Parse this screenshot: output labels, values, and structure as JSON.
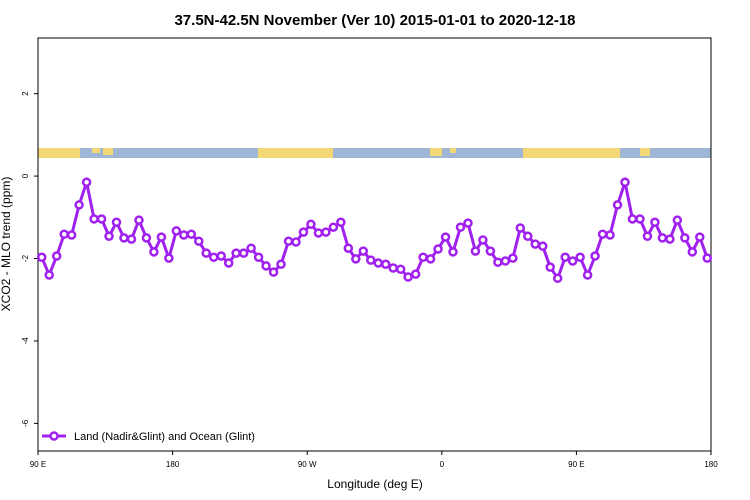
{
  "chart_data": {
    "type": "line",
    "title": "37.5N-42.5N November (Ver 10)   2015-01-01 to 2020-12-18",
    "x_label": "Longitude (deg E)",
    "y_label": "XCO2 - MLO trend (ppm)",
    "x": [
      92.5,
      97.5,
      102.5,
      107.5,
      112.5,
      117.5,
      122.5,
      127.5,
      132.5,
      137.5,
      142.5,
      147.5,
      152.5,
      157.5,
      162.5,
      167.5,
      172.5,
      177.5,
      182.5,
      187.5,
      192.5,
      197.5,
      202.5,
      207.5,
      212.5,
      217.5,
      222.5,
      227.5,
      232.5,
      237.5,
      242.5,
      247.5,
      252.5,
      257.5,
      262.5,
      267.5,
      272.5,
      277.5,
      282.5,
      287.5,
      292.5,
      297.5,
      302.5,
      307.5,
      312.5,
      317.5,
      322.5,
      327.5,
      332.5,
      337.5,
      342.5,
      347.5,
      352.5,
      357.5,
      362.5,
      367.5,
      372.5,
      377.5,
      382.5,
      387.5,
      392.5,
      397.5,
      402.5,
      407.5,
      412.5,
      417.5,
      422.5,
      427.5,
      432.5,
      437.5,
      442.5,
      447.5,
      452.5,
      457.5,
      462.5,
      467.5,
      472.5,
      477.5,
      482.5,
      487.5,
      492.5,
      497.5,
      502.5,
      507.5,
      512.5,
      517.5,
      522.5,
      527.5,
      532.5,
      537.5
    ],
    "series": [
      {
        "name": "Land (Nadir&Glint) and Ocean (Glint)",
        "color": "#a020f0",
        "values": [
          -1.97,
          -2.4,
          -1.94,
          -1.41,
          -1.43,
          -0.7,
          -0.15,
          -1.04,
          -1.04,
          -1.46,
          -1.12,
          -1.5,
          -1.53,
          -1.07,
          -1.5,
          -1.84,
          -1.48,
          -1.99,
          -1.33,
          -1.43,
          -1.41,
          -1.58,
          -1.87,
          -1.97,
          -1.94,
          -2.11,
          -1.87,
          -1.87,
          -1.75,
          -1.97,
          -2.18,
          -2.33,
          -2.14,
          -1.58,
          -1.6,
          -1.36,
          -1.17,
          -1.38,
          -1.36,
          -1.24,
          -1.12,
          -1.75,
          -2.01,
          -1.82,
          -2.04,
          -2.11,
          -2.14,
          -2.23,
          -2.26,
          -2.45,
          -2.38,
          -1.97,
          -2.01,
          -1.77,
          -1.48,
          -1.84,
          -1.24,
          -1.14,
          -1.82,
          -1.55,
          -1.82,
          -2.09,
          -2.06,
          -1.99,
          -1.26,
          -1.46,
          -1.65,
          -1.7,
          -2.21,
          -2.48,
          -1.97,
          -2.06,
          -1.97,
          -2.4,
          -1.94,
          -1.41,
          -1.43,
          -0.7,
          -0.15,
          -1.04,
          -1.04,
          -1.46,
          -1.12,
          -1.5,
          -1.53,
          -1.07,
          -1.5,
          -1.84,
          -1.48,
          -1.99
        ]
      }
    ],
    "xlim": [
      90,
      540
    ],
    "xticks": [
      {
        "value": 90,
        "label": "90 E"
      },
      180,
      {
        "value": 270,
        "label": "90 W"
      },
      {
        "value": 360,
        "label": "0"
      },
      {
        "value": 450,
        "label": "90 E"
      },
      {
        "value": 540,
        "label": "180"
      }
    ],
    "ylim": [
      -6.67,
      3.35
    ],
    "yticks": [
      -6,
      -4,
      -2,
      0,
      2
    ],
    "legend": "lower left"
  }
}
